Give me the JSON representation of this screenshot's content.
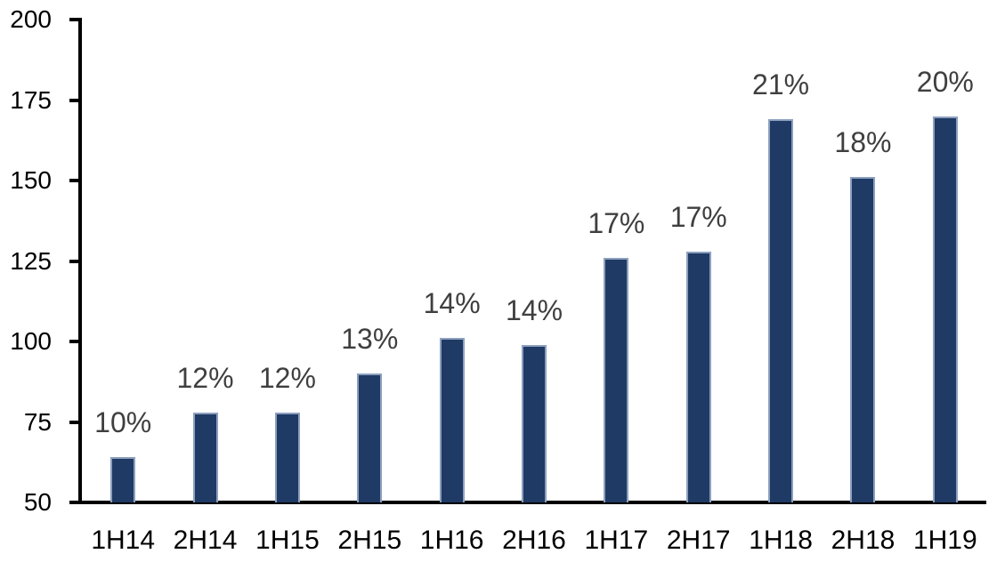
{
  "chart_data": {
    "type": "bar",
    "categories": [
      "1H14",
      "2H14",
      "1H15",
      "2H15",
      "1H16",
      "2H16",
      "1H17",
      "2H17",
      "1H18",
      "2H18",
      "1H19"
    ],
    "values": [
      64,
      78,
      78,
      90,
      101,
      99,
      126,
      128,
      169,
      151,
      170
    ],
    "bar_labels": [
      "10%",
      "12%",
      "12%",
      "13%",
      "14%",
      "14%",
      "17%",
      "17%",
      "21%",
      "18%",
      "20%"
    ],
    "title": "",
    "xlabel": "",
    "ylabel": "",
    "ylim": [
      50,
      200
    ],
    "yticks": [
      50,
      75,
      100,
      125,
      150,
      175,
      200
    ],
    "grid": false,
    "legend": null,
    "colors": {
      "bar_fill": "#1F3A64",
      "bar_edge": "#8DA0BE",
      "data_label": "#3F3F3F",
      "axis": "#000000",
      "background": "#FFFFFF"
    }
  }
}
